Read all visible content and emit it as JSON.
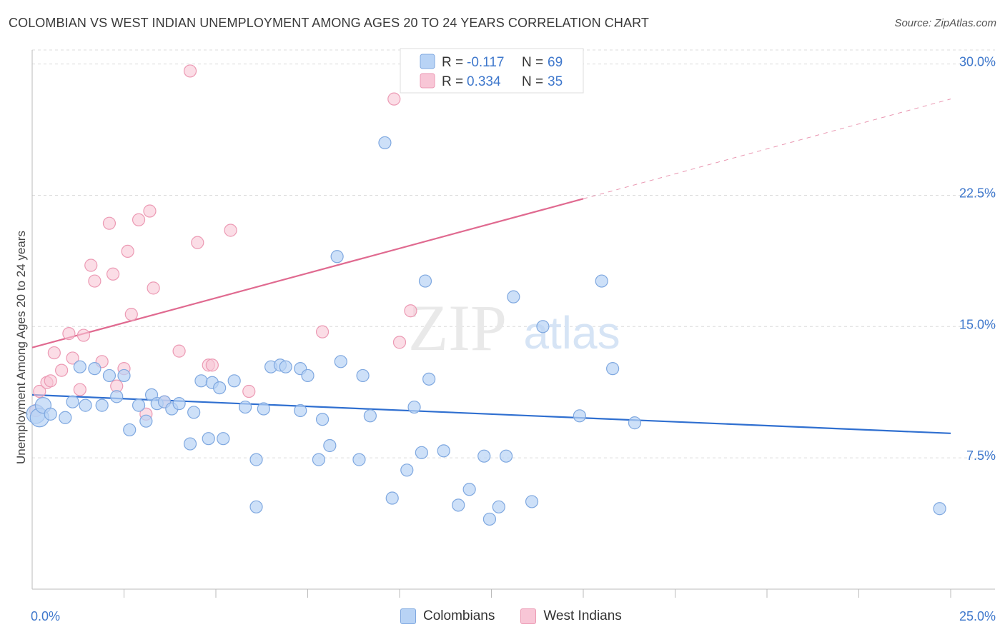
{
  "header": {
    "title": "COLOMBIAN VS WEST INDIAN UNEMPLOYMENT AMONG AGES 20 TO 24 YEARS CORRELATION CHART",
    "source": "Source: ZipAtlas.com"
  },
  "watermark": {
    "part1": "ZIP",
    "part2": "atlas"
  },
  "colors": {
    "blue_fill": "#b8d3f5",
    "blue_stroke": "#7fa8e0",
    "blue_line": "#2f6fd0",
    "pink_fill": "#f8c6d6",
    "pink_stroke": "#ec9ab4",
    "pink_line": "#e06a90",
    "axis_text_blue": "#3f78cc"
  },
  "legend": {
    "rows": [
      {
        "r_label": "R =",
        "r_value": "-0.117",
        "n_label": "N =",
        "n_value": "69"
      },
      {
        "r_label": "R =",
        "r_value": "0.334",
        "n_label": "N =",
        "n_value": "35"
      }
    ]
  },
  "bottom_legend": {
    "colombians": "Colombians",
    "west_indians": "West Indians"
  },
  "chart_data": {
    "type": "scatter",
    "title": "COLOMBIAN VS WEST INDIAN UNEMPLOYMENT AMONG AGES 20 TO 24 YEARS CORRELATION CHART",
    "xlabel": "",
    "ylabel": "Unemployment Among Ages 20 to 24 years",
    "xlim": [
      0,
      25
    ],
    "ylim": [
      0,
      30.8
    ],
    "x_tick_labels": [
      "0.0%",
      "25.0%"
    ],
    "y_ticks": [
      7.5,
      15.0,
      22.5,
      30.0
    ],
    "y_tick_labels": [
      "7.5%",
      "15.0%",
      "22.5%",
      "30.0%"
    ],
    "grid": true,
    "legend_position": "top-center",
    "series": [
      {
        "name": "Colombians",
        "r": -0.117,
        "n": 69,
        "trend": {
          "x": [
            0,
            25
          ],
          "y": [
            11.1,
            8.9
          ]
        },
        "points": [
          [
            0.1,
            10.0
          ],
          [
            0.2,
            9.8
          ],
          [
            0.3,
            10.5
          ],
          [
            0.5,
            10.0
          ],
          [
            0.9,
            9.8
          ],
          [
            1.1,
            10.7
          ],
          [
            1.3,
            12.7
          ],
          [
            1.45,
            10.5
          ],
          [
            1.7,
            12.6
          ],
          [
            1.9,
            10.5
          ],
          [
            2.1,
            12.2
          ],
          [
            2.3,
            11.0
          ],
          [
            2.5,
            12.2
          ],
          [
            2.65,
            9.1
          ],
          [
            2.9,
            10.5
          ],
          [
            3.1,
            9.6
          ],
          [
            3.25,
            11.1
          ],
          [
            3.4,
            10.6
          ],
          [
            3.6,
            10.7
          ],
          [
            3.8,
            10.3
          ],
          [
            4.0,
            10.6
          ],
          [
            4.3,
            8.3
          ],
          [
            4.4,
            10.1
          ],
          [
            4.6,
            11.9
          ],
          [
            4.8,
            8.6
          ],
          [
            4.9,
            11.8
          ],
          [
            5.1,
            11.5
          ],
          [
            5.2,
            8.6
          ],
          [
            5.5,
            11.9
          ],
          [
            5.8,
            10.4
          ],
          [
            6.1,
            7.4
          ],
          [
            6.3,
            10.3
          ],
          [
            6.5,
            12.7
          ],
          [
            6.75,
            12.8
          ],
          [
            6.9,
            12.7
          ],
          [
            7.3,
            12.6
          ],
          [
            7.3,
            10.2
          ],
          [
            7.5,
            12.2
          ],
          [
            7.8,
            7.4
          ],
          [
            7.9,
            9.7
          ],
          [
            8.1,
            8.2
          ],
          [
            8.3,
            19.0
          ],
          [
            8.4,
            13.0
          ],
          [
            8.9,
            7.4
          ],
          [
            9.0,
            12.2
          ],
          [
            9.2,
            9.9
          ],
          [
            9.6,
            25.5
          ],
          [
            9.8,
            5.2
          ],
          [
            10.2,
            6.8
          ],
          [
            10.4,
            10.4
          ],
          [
            10.6,
            7.8
          ],
          [
            10.7,
            17.6
          ],
          [
            10.8,
            12.0
          ],
          [
            11.2,
            7.9
          ],
          [
            11.6,
            4.8
          ],
          [
            11.9,
            5.7
          ],
          [
            12.3,
            7.6
          ],
          [
            12.45,
            4.0
          ],
          [
            12.7,
            4.7
          ],
          [
            12.9,
            7.6
          ],
          [
            13.1,
            16.7
          ],
          [
            13.6,
            5.0
          ],
          [
            13.9,
            15.0
          ],
          [
            14.9,
            9.9
          ],
          [
            15.5,
            17.6
          ],
          [
            15.8,
            12.6
          ],
          [
            16.4,
            9.5
          ],
          [
            24.7,
            4.6
          ],
          [
            6.1,
            4.7
          ]
        ]
      },
      {
        "name": "West Indians",
        "r": 0.334,
        "n": 35,
        "trend": {
          "x": [
            0,
            15
          ],
          "y": [
            13.8,
            22.3
          ],
          "dashed_to": {
            "x": 25,
            "y": 28.0
          }
        },
        "points": [
          [
            0.1,
            10.2
          ],
          [
            0.2,
            11.3
          ],
          [
            0.4,
            11.8
          ],
          [
            0.5,
            11.9
          ],
          [
            0.6,
            13.5
          ],
          [
            0.8,
            12.5
          ],
          [
            1.0,
            14.6
          ],
          [
            1.1,
            13.2
          ],
          [
            1.3,
            11.4
          ],
          [
            1.4,
            14.5
          ],
          [
            1.6,
            18.5
          ],
          [
            1.7,
            17.6
          ],
          [
            1.9,
            13.0
          ],
          [
            2.1,
            20.9
          ],
          [
            2.2,
            18.0
          ],
          [
            2.3,
            11.6
          ],
          [
            2.5,
            12.6
          ],
          [
            2.6,
            19.3
          ],
          [
            2.7,
            15.7
          ],
          [
            2.9,
            21.1
          ],
          [
            3.1,
            10.0
          ],
          [
            3.2,
            21.6
          ],
          [
            3.3,
            17.2
          ],
          [
            3.6,
            10.7
          ],
          [
            4.0,
            13.6
          ],
          [
            4.3,
            29.6
          ],
          [
            4.5,
            19.8
          ],
          [
            4.8,
            12.8
          ],
          [
            4.9,
            12.8
          ],
          [
            5.4,
            20.5
          ],
          [
            5.9,
            11.3
          ],
          [
            7.9,
            14.7
          ],
          [
            9.85,
            28.0
          ],
          [
            10.0,
            14.1
          ],
          [
            10.3,
            15.9
          ]
        ]
      }
    ]
  }
}
